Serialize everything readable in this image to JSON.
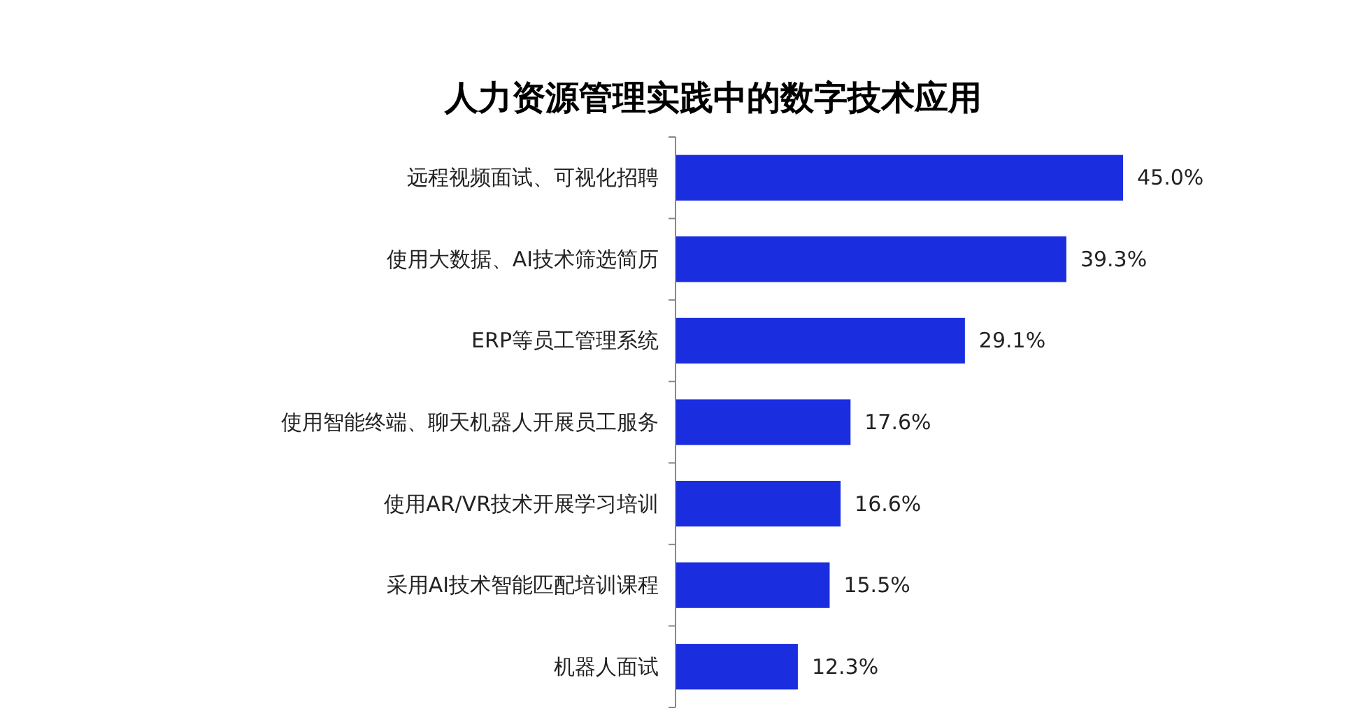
{
  "chart_data": {
    "type": "bar",
    "orientation": "horizontal",
    "title": "人力资源管理实践中的数字技术应用",
    "categories": [
      "远程视频面试、可视化招聘",
      "使用大数据、AI技术筛选简历",
      "ERP等员工管理系统",
      "使用智能终端、聊天机器人开展员工服务",
      "使用AR/VR技术开展学习培训",
      "采用AI技术智能匹配培训课程",
      "机器人面试"
    ],
    "values": [
      45.0,
      39.3,
      29.1,
      17.6,
      16.6,
      15.5,
      12.3
    ],
    "value_labels": [
      "45.0%",
      "39.3%",
      "29.1%",
      "17.6%",
      "16.6%",
      "15.5%",
      "12.3%"
    ],
    "color": "#1a2ee0",
    "relative": false
  }
}
